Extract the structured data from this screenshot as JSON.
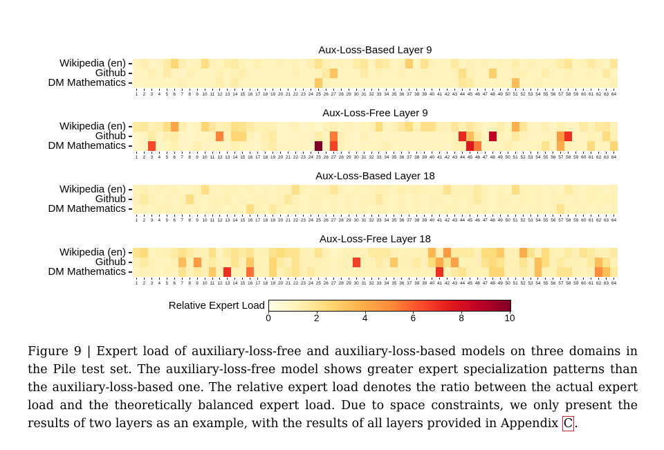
{
  "figure": {
    "colorbar": {
      "label": "Relative Expert Load",
      "ticks": [
        "0",
        "2",
        "4",
        "6",
        "8",
        "10"
      ],
      "value_min": 0,
      "value_max": 10,
      "colormap": {
        "name": "YlOrRd",
        "stops": [
          "#fffde9",
          "#fff1b3",
          "#fed976",
          "#feb24c",
          "#fd8d3c",
          "#fc4e2a",
          "#e31a1c",
          "#bd0026",
          "#800026"
        ]
      }
    },
    "domains": [
      "Wikipedia (en)",
      "Github",
      "DM Mathematics"
    ],
    "x_ticks": [
      1,
      2,
      3,
      4,
      5,
      6,
      7,
      8,
      9,
      10,
      11,
      12,
      13,
      14,
      15,
      16,
      17,
      18,
      19,
      20,
      21,
      22,
      23,
      24,
      25,
      26,
      27,
      28,
      29,
      30,
      31,
      32,
      33,
      34,
      35,
      36,
      37,
      38,
      39,
      40,
      41,
      42,
      43,
      44,
      45,
      46,
      47,
      48,
      49,
      50,
      51,
      52,
      53,
      54,
      55,
      56,
      57,
      58,
      59,
      60,
      61,
      62,
      63,
      64
    ]
  },
  "chart_data": [
    {
      "type": "heatmap",
      "title": "Aux-Loss-Based Layer 9",
      "rows": [
        "Wikipedia (en)",
        "Github",
        "DM Mathematics"
      ],
      "x_range": [
        1,
        64
      ],
      "value_range": [
        0,
        10
      ],
      "values": [
        [
          1.0,
          1.3,
          0.9,
          1.0,
          1.5,
          2.6,
          1.3,
          1.0,
          1.1,
          2.2,
          1.2,
          1.0,
          1.4,
          1.6,
          1.1,
          1.0,
          1.3,
          1.0,
          1.0,
          1.2,
          1.0,
          1.1,
          0.9,
          1.3,
          2.0,
          1.2,
          1.0,
          1.1,
          1.0,
          1.5,
          1.8,
          1.0,
          1.8,
          1.5,
          1.0,
          1.1,
          2.8,
          1.0,
          2.0,
          1.1,
          1.0,
          1.0,
          1.6,
          1.0,
          1.2,
          1.0,
          1.2,
          1.0,
          1.1,
          1.0,
          1.4,
          1.0,
          1.2,
          1.0,
          1.0,
          1.1,
          1.5,
          1.9,
          1.0,
          1.1,
          1.6,
          1.2,
          1.0,
          1.8
        ],
        [
          0.9,
          1.0,
          1.3,
          0.9,
          1.5,
          1.0,
          0.9,
          1.2,
          1.0,
          1.0,
          1.0,
          1.3,
          1.0,
          1.1,
          1.4,
          1.0,
          0.9,
          1.0,
          1.0,
          1.0,
          1.0,
          1.2,
          1.0,
          1.0,
          1.1,
          1.6,
          3.2,
          1.0,
          1.0,
          1.0,
          1.5,
          1.0,
          1.1,
          1.0,
          1.0,
          1.2,
          1.0,
          1.0,
          1.1,
          1.0,
          1.0,
          1.0,
          1.1,
          2.2,
          1.2,
          1.0,
          1.0,
          2.8,
          1.0,
          1.0,
          1.2,
          1.3,
          1.0,
          1.0,
          1.4,
          1.0,
          1.0,
          1.2,
          1.0,
          1.0,
          1.1,
          1.0,
          1.6,
          1.0
        ],
        [
          0.9,
          1.0,
          1.0,
          1.0,
          1.0,
          1.0,
          1.2,
          1.0,
          1.0,
          1.0,
          1.0,
          1.4,
          1.0,
          1.5,
          1.0,
          1.0,
          1.0,
          1.0,
          1.0,
          1.0,
          1.0,
          1.0,
          1.0,
          1.0,
          3.0,
          1.1,
          1.0,
          1.0,
          1.0,
          1.0,
          1.0,
          1.0,
          1.0,
          1.0,
          1.0,
          1.0,
          1.0,
          1.0,
          1.0,
          1.0,
          1.0,
          1.0,
          1.0,
          1.8,
          1.6,
          1.0,
          1.0,
          1.0,
          1.0,
          1.0,
          3.4,
          1.0,
          1.0,
          1.2,
          1.0,
          1.0,
          1.0,
          1.1,
          1.0,
          1.0,
          1.0,
          1.0,
          1.0,
          1.2
        ]
      ]
    },
    {
      "type": "heatmap",
      "title": "Aux-Loss-Free Layer 9",
      "rows": [
        "Wikipedia (en)",
        "Github",
        "DM Mathematics"
      ],
      "x_range": [
        1,
        64
      ],
      "value_range": [
        0,
        10
      ],
      "values": [
        [
          1.6,
          1.7,
          1.2,
          1.4,
          2.2,
          4.2,
          1.3,
          0.8,
          1.0,
          2.6,
          1.7,
          1.2,
          1.3,
          2.2,
          2.0,
          1.6,
          1.2,
          1.3,
          1.2,
          0.8,
          0.9,
          1.1,
          0.8,
          1.0,
          0.7,
          1.1,
          1.3,
          1.0,
          1.1,
          0.9,
          1.0,
          1.1,
          2.4,
          1.0,
          1.1,
          1.7,
          2.4,
          1.1,
          2.1,
          2.1,
          1.2,
          1.1,
          1.8,
          1.3,
          1.7,
          1.3,
          0.9,
          1.0,
          1.4,
          1.0,
          3.8,
          1.8,
          1.0,
          0.9,
          1.3,
          0.9,
          1.3,
          1.0,
          0.9,
          1.6,
          1.2,
          1.6,
          1.7,
          1.1
        ],
        [
          0.8,
          0.9,
          1.6,
          1.0,
          1.3,
          1.5,
          0.9,
          0.8,
          0.9,
          1.0,
          1.1,
          5.2,
          1.1,
          2.6,
          2.6,
          1.1,
          0.9,
          1.3,
          1.6,
          0.9,
          0.8,
          0.9,
          0.9,
          0.9,
          1.5,
          1.0,
          5.4,
          1.2,
          0.9,
          0.8,
          1.2,
          0.8,
          1.0,
          0.9,
          1.0,
          0.9,
          1.0,
          0.9,
          1.0,
          1.0,
          0.9,
          1.0,
          1.1,
          7.2,
          3.4,
          1.6,
          1.0,
          8.6,
          1.1,
          1.0,
          1.6,
          1.1,
          0.9,
          0.9,
          1.0,
          1.1,
          4.6,
          7.0,
          1.0,
          0.9,
          1.1,
          1.0,
          2.4,
          1.2
        ],
        [
          0.8,
          1.0,
          6.4,
          0.9,
          1.0,
          1.3,
          0.8,
          0.9,
          1.3,
          0.9,
          0.9,
          1.0,
          0.9,
          1.3,
          1.0,
          0.9,
          0.8,
          1.2,
          1.5,
          0.9,
          0.9,
          1.0,
          0.9,
          0.9,
          10.0,
          1.0,
          6.6,
          1.1,
          0.9,
          0.8,
          0.9,
          1.0,
          1.0,
          1.3,
          0.9,
          1.0,
          0.9,
          1.0,
          0.9,
          1.0,
          1.0,
          0.9,
          1.2,
          1.3,
          7.6,
          5.4,
          1.0,
          0.9,
          1.0,
          1.3,
          1.0,
          0.9,
          1.0,
          1.0,
          2.0,
          1.0,
          4.0,
          1.1,
          0.9,
          1.0,
          2.4,
          1.0,
          1.0,
          2.6
        ]
      ]
    },
    {
      "type": "heatmap",
      "title": "Aux-Loss-Based Layer 18",
      "rows": [
        "Wikipedia (en)",
        "Github",
        "DM Mathematics"
      ],
      "x_range": [
        1,
        64
      ],
      "value_range": [
        0,
        10
      ],
      "values": [
        [
          1.1,
          1.3,
          1.0,
          1.1,
          1.0,
          1.1,
          1.0,
          1.0,
          1.1,
          2.2,
          1.1,
          1.0,
          1.1,
          1.1,
          1.0,
          1.1,
          1.0,
          1.1,
          1.0,
          1.1,
          1.1,
          2.2,
          1.1,
          1.0,
          1.1,
          1.2,
          1.8,
          1.1,
          1.0,
          1.1,
          1.0,
          1.1,
          1.3,
          1.2,
          1.0,
          1.4,
          1.1,
          1.3,
          1.1,
          1.0,
          1.1,
          2.0,
          1.1,
          1.2,
          1.1,
          1.6,
          1.1,
          1.0,
          1.1,
          1.0,
          2.2,
          1.1,
          1.0,
          1.1,
          1.0,
          1.1,
          1.0,
          1.6,
          1.1,
          1.0,
          1.2,
          1.1,
          1.0,
          1.1
        ],
        [
          1.1,
          1.6,
          1.1,
          1.0,
          1.1,
          1.0,
          1.1,
          2.2,
          1.1,
          1.0,
          1.1,
          1.1,
          1.3,
          1.0,
          1.1,
          1.0,
          1.1,
          1.1,
          1.0,
          1.1,
          1.7,
          1.1,
          1.0,
          1.1,
          1.1,
          1.0,
          1.1,
          1.0,
          1.1,
          1.0,
          1.1,
          1.1,
          1.7,
          1.1,
          1.0,
          1.1,
          1.0,
          1.1,
          1.0,
          1.1,
          1.1,
          1.0,
          1.1,
          1.0,
          1.1,
          1.6,
          1.1,
          1.0,
          1.1,
          1.1,
          1.0,
          1.1,
          1.0,
          1.1,
          1.0,
          1.1,
          1.1,
          1.0,
          1.1,
          1.0,
          1.1,
          1.0,
          1.1,
          1.1
        ],
        [
          1.0,
          1.1,
          1.0,
          1.1,
          1.2,
          1.0,
          1.1,
          1.0,
          1.1,
          1.0,
          1.1,
          1.1,
          1.0,
          1.1,
          1.0,
          2.2,
          1.1,
          1.0,
          1.6,
          1.1,
          1.0,
          1.1,
          1.0,
          1.1,
          1.1,
          1.0,
          1.1,
          1.0,
          1.1,
          1.0,
          1.1,
          1.0,
          1.1,
          1.1,
          1.0,
          1.2,
          1.0,
          1.1,
          1.0,
          1.1,
          1.0,
          1.1,
          1.1,
          1.0,
          1.1,
          1.0,
          1.1,
          1.0,
          1.1,
          1.0,
          1.1,
          1.0,
          1.1,
          1.1,
          1.0,
          1.1,
          2.0,
          1.1,
          1.0,
          1.1,
          1.0,
          1.1,
          1.0,
          1.1
        ]
      ]
    },
    {
      "type": "heatmap",
      "title": "Aux-Loss-Free Layer 18",
      "rows": [
        "Wikipedia (en)",
        "Github",
        "DM Mathematics"
      ],
      "x_range": [
        1,
        64
      ],
      "value_range": [
        0,
        10
      ],
      "values": [
        [
          2.0,
          2.4,
          1.0,
          1.2,
          1.2,
          1.6,
          2.0,
          1.6,
          1.2,
          1.1,
          2.2,
          1.0,
          1.6,
          2.0,
          1.6,
          2.0,
          1.1,
          1.2,
          2.0,
          2.4,
          2.0,
          2.0,
          1.2,
          1.1,
          2.0,
          1.2,
          0.8,
          1.0,
          1.2,
          1.2,
          1.1,
          1.6,
          1.6,
          1.6,
          1.2,
          1.1,
          1.2,
          1.1,
          1.2,
          3.6,
          1.2,
          4.6,
          1.6,
          1.6,
          1.6,
          1.2,
          2.4,
          2.4,
          3.0,
          1.2,
          1.2,
          4.0,
          2.0,
          1.2,
          2.4,
          1.2,
          1.1,
          1.6,
          1.2,
          2.0,
          1.6,
          1.2,
          1.2,
          1.6
        ],
        [
          1.2,
          1.6,
          1.1,
          1.0,
          1.0,
          1.2,
          3.4,
          1.2,
          4.6,
          1.2,
          1.6,
          1.1,
          1.2,
          2.0,
          1.2,
          3.0,
          1.2,
          1.1,
          2.6,
          1.6,
          1.2,
          2.0,
          1.2,
          1.1,
          1.2,
          1.1,
          1.0,
          1.2,
          1.1,
          6.6,
          1.2,
          1.1,
          1.6,
          1.2,
          3.0,
          1.2,
          1.2,
          1.6,
          1.2,
          2.4,
          4.0,
          2.0,
          4.4,
          1.1,
          1.2,
          1.2,
          2.0,
          2.4,
          2.0,
          1.2,
          1.2,
          2.0,
          1.2,
          3.4,
          2.4,
          1.2,
          1.6,
          1.2,
          1.2,
          1.1,
          1.6,
          3.4,
          2.0,
          1.2
        ],
        [
          1.0,
          1.2,
          1.1,
          1.0,
          1.1,
          1.0,
          2.0,
          1.1,
          1.6,
          1.2,
          3.0,
          1.2,
          7.0,
          1.2,
          1.1,
          5.6,
          1.2,
          1.2,
          2.6,
          1.2,
          1.6,
          2.0,
          1.2,
          1.6,
          1.2,
          1.1,
          1.0,
          1.1,
          1.1,
          1.2,
          1.1,
          1.1,
          1.2,
          1.1,
          1.2,
          1.1,
          1.1,
          1.2,
          1.1,
          1.2,
          7.0,
          1.2,
          1.6,
          2.0,
          1.2,
          1.1,
          1.2,
          2.6,
          2.6,
          1.2,
          1.2,
          1.6,
          1.2,
          3.4,
          1.2,
          1.1,
          2.0,
          2.0,
          1.2,
          1.1,
          1.2,
          5.0,
          3.4,
          1.6
        ]
      ]
    }
  ],
  "caption": {
    "lines": [
      "Figure 9 | Expert load of auxiliary-loss-free and auxiliary-loss-based models on three domains in",
      "the Pile test set. The auxiliary-loss-free model shows greater expert specialization patterns than",
      "the auxiliary-loss-based one. The relative expert load denotes the ratio between the actual expert",
      "load and the theoretically balanced expert load. Due to space constraints, we only present the"
    ],
    "last_line_prefix": "results of two layers as an example, with the results of all layers provided in Appendix ",
    "appendix_link": "C",
    "last_line_suffix": ".",
    "link_box_color": "#e02020"
  }
}
